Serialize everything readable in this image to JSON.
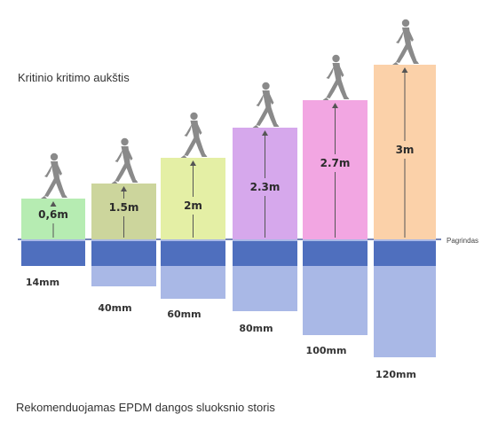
{
  "top_title": "Kritinio kritimo aukštis",
  "bottom_title": "Rekomenduojamas EPDM dangos sluoksnio storis",
  "ground_label": "Pagrindas",
  "steps": [
    {
      "height": "0,6m",
      "thickness": "14mm",
      "color": "#b6ecb2"
    },
    {
      "height": "1.5m",
      "thickness": "40mm",
      "color": "#ccd59c"
    },
    {
      "height": "2m",
      "thickness": "60mm",
      "color": "#e4efa5"
    },
    {
      "height": "2.3m",
      "thickness": "80mm",
      "color": "#d6a8ec"
    },
    {
      "height": "2.7m",
      "thickness": "100mm",
      "color": "#f2a6e2"
    },
    {
      "height": "3m",
      "thickness": "120mm",
      "color": "#fbd1a9"
    }
  ],
  "colors": {
    "base_dark": "#4f6fbe",
    "base_light": "#a9b8e6",
    "ground_line": "#4a5f9e",
    "figure": "#8a8a8a"
  }
}
